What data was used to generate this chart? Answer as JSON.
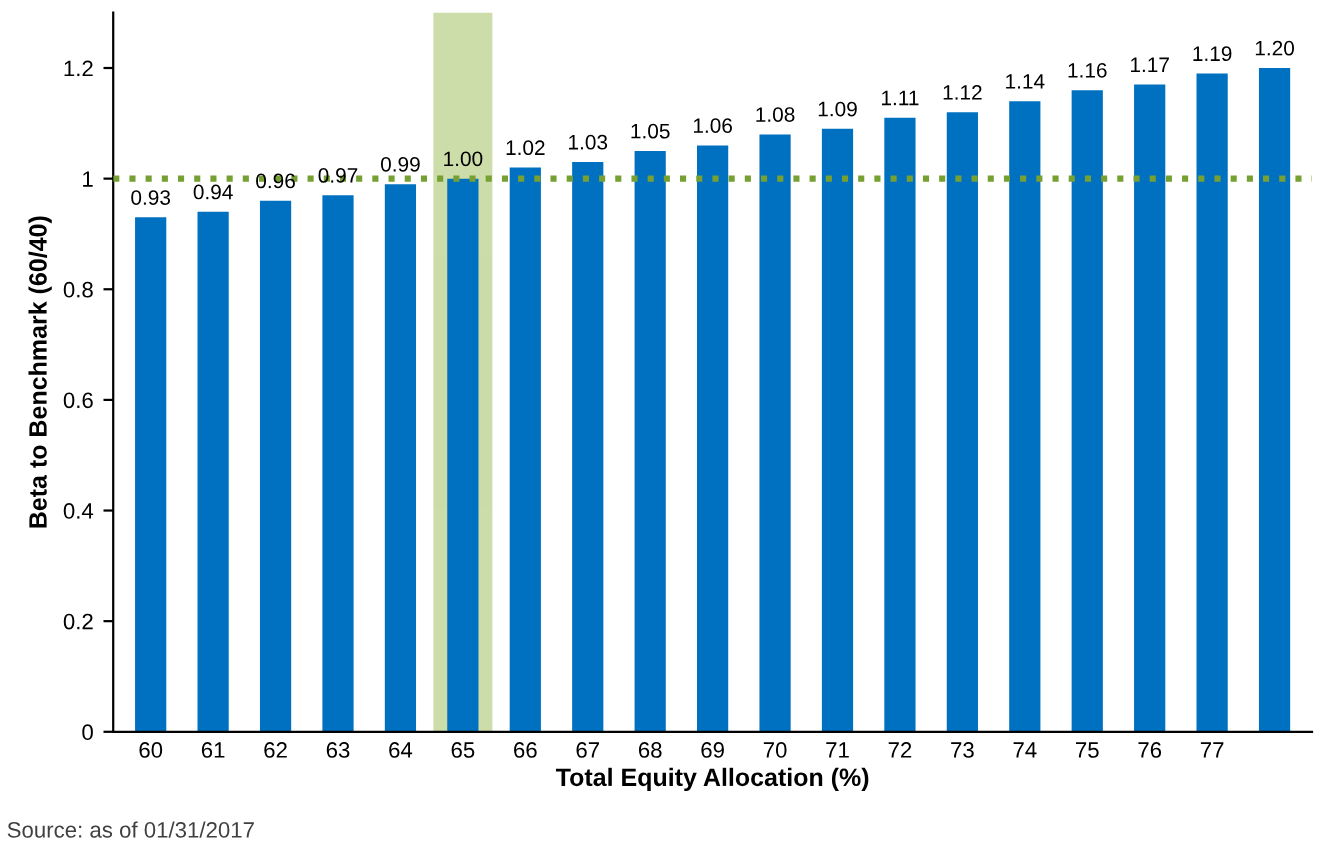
{
  "chart_data": {
    "type": "bar",
    "ylabel": "Beta to Benchmark (60/40)",
    "xlabel": "Total Equity Allocation (%)",
    "annotations": [
      "Source: as of 01/31/2017"
    ],
    "categories": [
      "60",
      "61",
      "62",
      "63",
      "64",
      "65",
      "66",
      "67",
      "68",
      "69",
      "70",
      "71",
      "72",
      "73",
      "74",
      "75",
      "76",
      "77",
      null
    ],
    "values": [
      0.93,
      0.94,
      0.96,
      0.97,
      0.99,
      1.0,
      1.02,
      1.03,
      1.05,
      1.06,
      1.08,
      1.09,
      1.11,
      1.12,
      1.14,
      1.16,
      1.17,
      1.19,
      1.2
    ],
    "value_labels": [
      "0.93",
      "0.94",
      "0.96",
      "0.97",
      "0.99",
      "1.00",
      "1.02",
      "1.03",
      "1.05",
      "1.06",
      "1.08",
      "1.09",
      "1.11",
      "1.12",
      "1.14",
      "1.16",
      "1.17",
      "1.19",
      "1.20"
    ],
    "color": "#0070c0",
    "ylim": [
      0,
      1.3
    ],
    "yticks": [
      0,
      0.2,
      0.4,
      0.6,
      0.8,
      1,
      1.2
    ],
    "ref_lines": [
      {
        "axis": "y",
        "value": 1,
        "label": null,
        "color": "#77a033",
        "line_style": "dotted"
      }
    ],
    "bands": [
      {
        "axis": "x",
        "from": "65",
        "to": "65",
        "label": null,
        "color": "#c4d79b"
      }
    ],
    "grid": false,
    "legend": false
  }
}
